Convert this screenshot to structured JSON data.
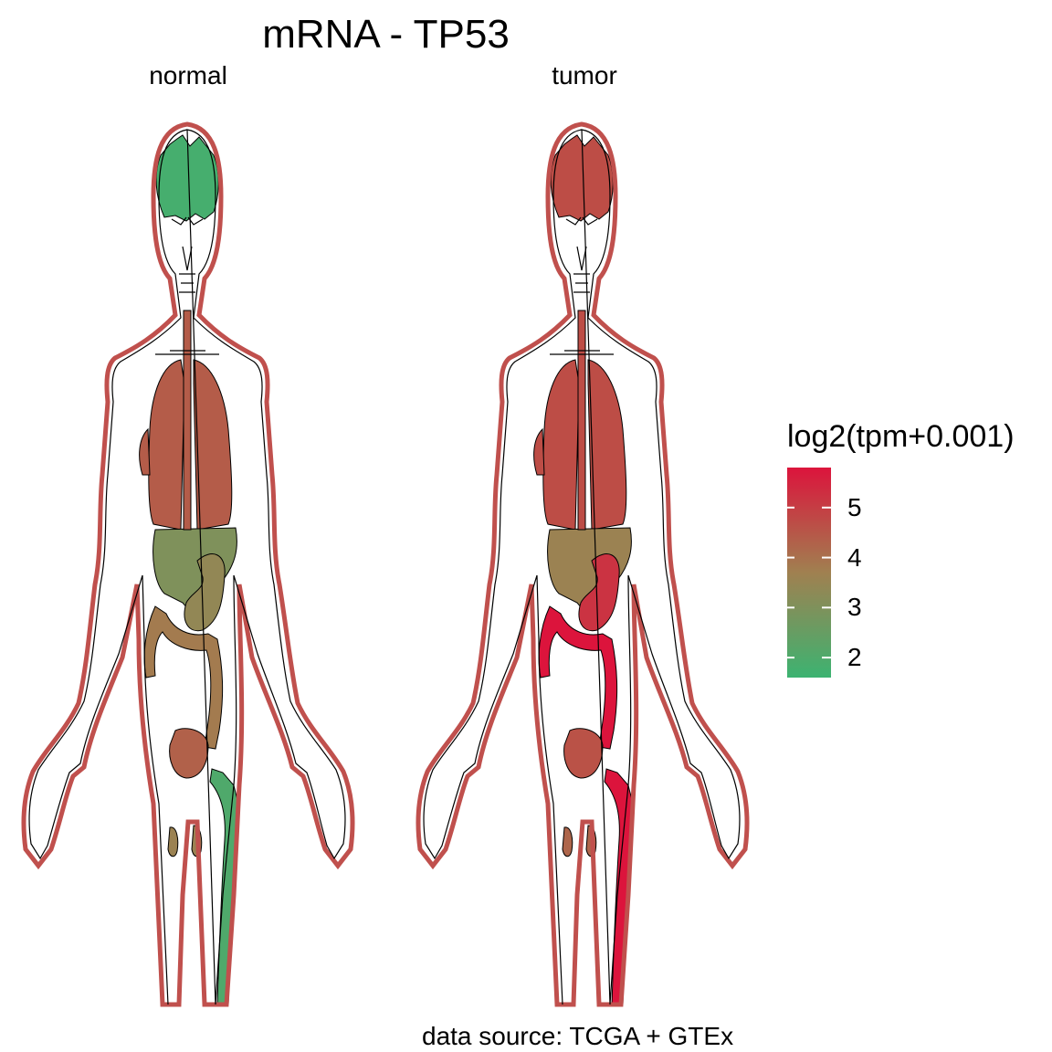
{
  "title": "mRNA - TP53",
  "panels": [
    {
      "label": "normal"
    },
    {
      "label": "tumor"
    }
  ],
  "caption": "data source: TCGA + GTEx",
  "legend": {
    "title": "log2(tpm+0.001)",
    "min": 1.6,
    "max": 5.8,
    "ticks": [
      "5",
      "4",
      "3",
      "2"
    ],
    "colors": {
      "low": "#3cb371",
      "mid": "#a08050",
      "high": "#dc143c"
    }
  },
  "colors": {
    "outline": "#c0504d",
    "body_stroke": "#000000"
  },
  "organ_values": {
    "normal": {
      "brain": 1.8,
      "lung": 4.4,
      "liver": 3.0,
      "stomach": 3.4,
      "colon": 3.8,
      "bladder": 4.3,
      "kidney": 3.6,
      "muscle": 2.0
    },
    "tumor": {
      "brain": 4.7,
      "lung": 4.7,
      "liver": 3.6,
      "stomach": 5.2,
      "colon": 5.8,
      "bladder": 4.6,
      "kidney": 4.2,
      "muscle": 5.8
    }
  }
}
